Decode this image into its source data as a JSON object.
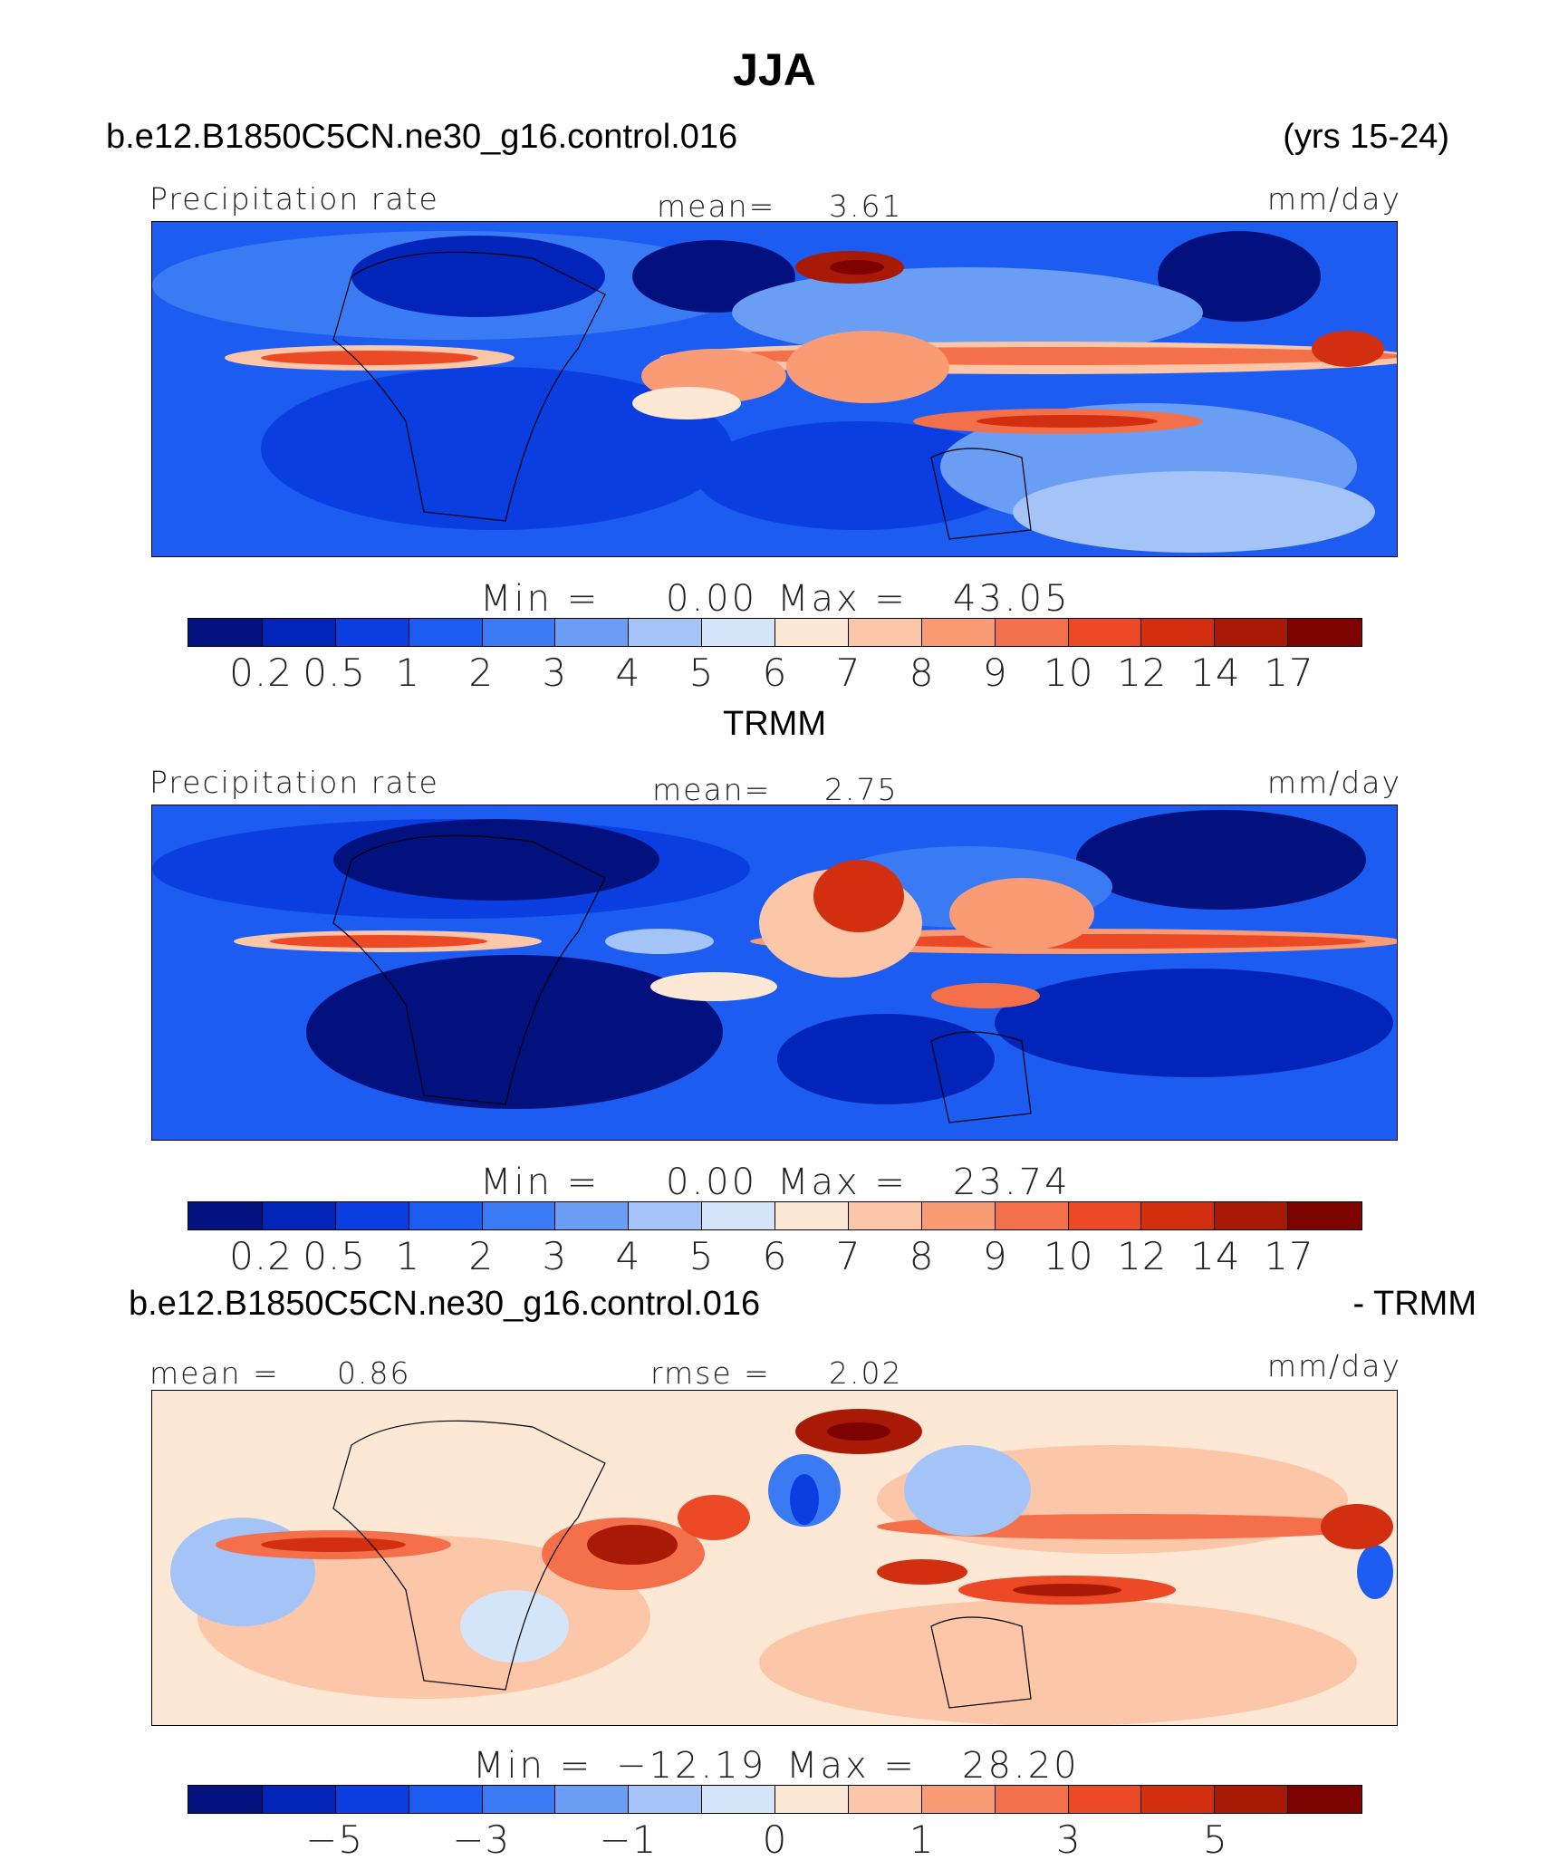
{
  "page": {
    "title": "JJA",
    "case_name": "b.e12.B1850C5CN.ne30_g16.control.016",
    "years": "(yrs 15-24)"
  },
  "panels": [
    {
      "id": "model",
      "left_label": "Precipitation rate",
      "center_label": "mean=",
      "center_value": "3.61",
      "units": "mm/day",
      "min_label": "Min  =",
      "min_value": "0.00",
      "max_label": "Max  =",
      "max_value": "43.05"
    },
    {
      "id": "obs",
      "header": "TRMM",
      "left_label": "Precipitation rate",
      "center_label": "mean=",
      "center_value": "2.75",
      "units": "mm/day",
      "min_label": "Min  =",
      "min_value": "0.00",
      "max_label": "Max  =",
      "max_value": "23.74"
    },
    {
      "id": "diff",
      "header_left": "b.e12.B1850C5CN.ne30_g16.control.016",
      "header_right": "- TRMM",
      "left_label": "mean  =",
      "left_value": "0.86",
      "center_label": "rmse  =",
      "center_value": "2.02",
      "units": "mm/day",
      "min_label": "Min  =",
      "min_value": "−12.19",
      "max_label": "Max  =",
      "max_value": "28.20"
    }
  ],
  "colorbars": {
    "precip": {
      "colors": [
        "#02117e",
        "#0324b8",
        "#0a3ee0",
        "#1c5cf0",
        "#3a7bf4",
        "#6a9ef4",
        "#a4c3f6",
        "#d4e5fa",
        "#fde8d6",
        "#fcc6a8",
        "#f99c76",
        "#f4704a",
        "#ec4a26",
        "#d22f10",
        "#a81a06",
        "#7c0300"
      ],
      "tick_labels": [
        "0.2",
        "0.5",
        "1",
        "2",
        "3",
        "4",
        "5",
        "6",
        "7",
        "8",
        "9",
        "10",
        "12",
        "14",
        "17"
      ]
    },
    "diff": {
      "colors": [
        "#02117e",
        "#0324b8",
        "#0a3ee0",
        "#1c5cf0",
        "#3a7bf4",
        "#6a9ef4",
        "#a4c3f6",
        "#d4e5fa",
        "#fde8d6",
        "#fcc6a8",
        "#f99c76",
        "#f4704a",
        "#ec4a26",
        "#d22f10",
        "#a81a06",
        "#7c0300"
      ],
      "tick_labels": [
        "−5",
        "−3",
        "−1",
        "0",
        "1",
        "3",
        "5"
      ],
      "tick_positions": [
        2,
        4,
        6,
        8,
        10,
        12,
        14
      ]
    }
  },
  "chart_data": [
    {
      "type": "heatmap",
      "title": "JJA",
      "subtitle": "b.e12.B1850C5CN.ne30_g16.control.016",
      "variable": "Precipitation rate",
      "units": "mm/day",
      "mean": 3.61,
      "min": 0.0,
      "max": 43.05,
      "contour_levels": [
        0.2,
        0.5,
        1,
        2,
        3,
        4,
        5,
        6,
        7,
        8,
        9,
        10,
        12,
        14,
        17
      ]
    },
    {
      "type": "heatmap",
      "title": "TRMM",
      "variable": "Precipitation rate",
      "units": "mm/day",
      "mean": 2.75,
      "min": 0.0,
      "max": 23.74,
      "contour_levels": [
        0.2,
        0.5,
        1,
        2,
        3,
        4,
        5,
        6,
        7,
        8,
        9,
        10,
        12,
        14,
        17
      ]
    },
    {
      "type": "heatmap",
      "title": "b.e12.B1850C5CN.ne30_g16.control.016 - TRMM",
      "units": "mm/day",
      "mean": 0.86,
      "rmse": 2.02,
      "min": -12.19,
      "max": 28.2,
      "colorbar_ticks": [
        -5,
        -3,
        -1,
        0,
        1,
        3,
        5
      ]
    }
  ]
}
